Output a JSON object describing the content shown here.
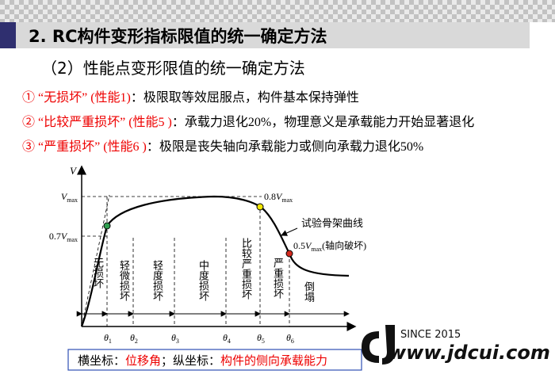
{
  "header": {
    "title": "2. RC构件变形指标限值的统一确定方法",
    "subtitle": "（2）性能点变形限值的统一确定方法"
  },
  "items": [
    {
      "lead": "① “无损坏” (性能1)",
      "text": "：极限取等效屈服点，构件基本保持弹性"
    },
    {
      "lead": "②  “比较严重损坏” (性能5 )",
      "text": "：承载力退化20%，物理意义是承载能力开始显著退化"
    },
    {
      "lead": "③ “严重损坏” (性能6 )",
      "text": "：极限是丧失轴向承载能力或侧向承载力退化50%"
    }
  ],
  "diagram": {
    "y_axis": "V",
    "vmax": {
      "main": "V",
      "sub": "max"
    },
    "v07": {
      "pre": "0.7",
      "main": "V",
      "sub": "max"
    },
    "v08": {
      "pre": "0.8",
      "main": "V",
      "sub": "max"
    },
    "v05": {
      "pre": "0.5",
      "main": "V",
      "sub": "max",
      "post": "(轴向破坏)"
    },
    "curve_label": "试验骨架曲线",
    "stages": [
      "无损坏",
      "轻微损坏",
      "轻度损坏",
      "中度损坏",
      "比较严重损坏",
      "严重损坏",
      "倒塌"
    ],
    "thetas": [
      {
        "main": "θ",
        "sub": "1"
      },
      {
        "main": "θ",
        "sub": "2"
      },
      {
        "main": "θ",
        "sub": "3"
      },
      {
        "main": "θ",
        "sub": "4"
      },
      {
        "main": "θ",
        "sub": "5"
      },
      {
        "main": "θ",
        "sub": "6"
      }
    ]
  },
  "caption": {
    "x_label": "横坐标：",
    "x_value": "位移角",
    "y_label": "；纵坐标：",
    "y_value": "构件的侧向承载能力"
  },
  "watermark": {
    "since": "SINCE 2015",
    "site": "www.jdcui.com"
  }
}
